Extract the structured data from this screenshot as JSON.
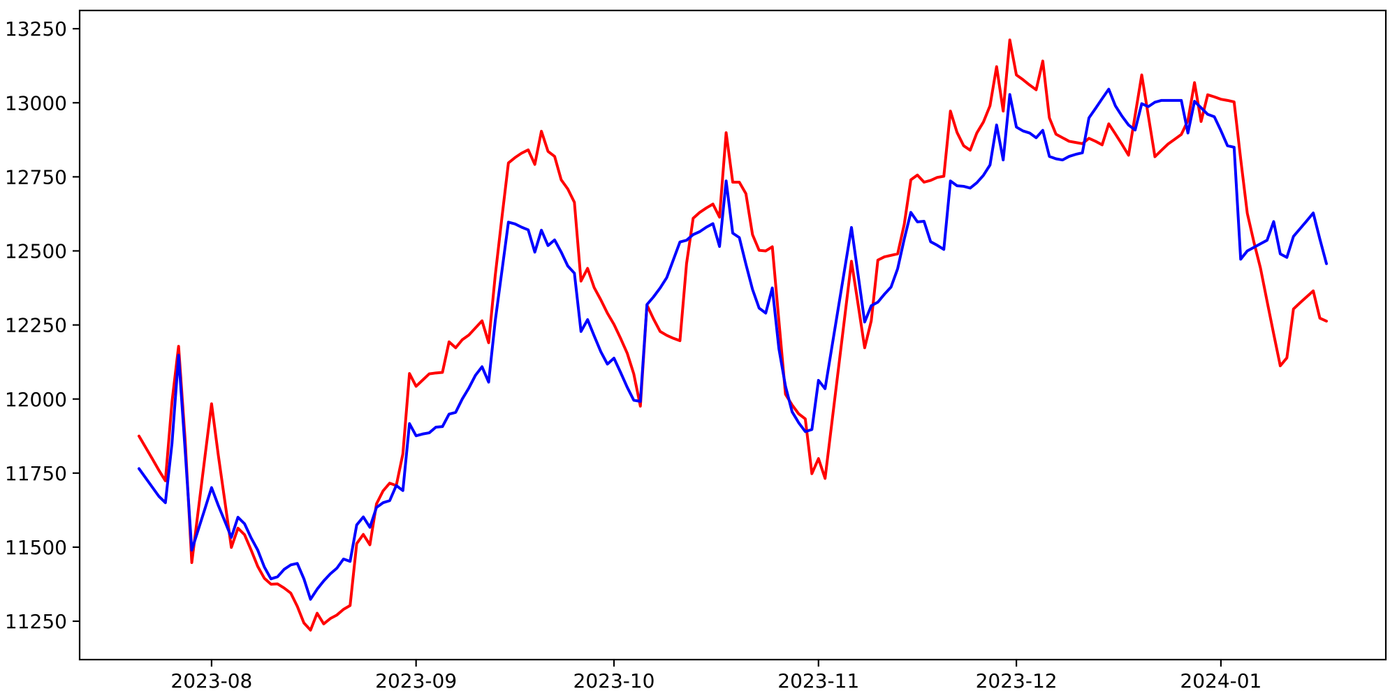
{
  "chart_data": {
    "type": "line",
    "title": "",
    "xlabel": "",
    "ylabel": "",
    "grid": false,
    "legend": null,
    "background_color": "#ffffff",
    "spine_color": "#000000",
    "tick_label_color": "#000000",
    "xlim": [
      "2023-07-12",
      "2024-01-26"
    ],
    "ylim": [
      11120.4,
      13311.6
    ],
    "y_ticks": [
      11250,
      11500,
      11750,
      12000,
      12250,
      12500,
      12750,
      13000,
      13250
    ],
    "y_tick_labels": [
      "11250",
      "11500",
      "11750",
      "12000",
      "12250",
      "12500",
      "12750",
      "13000",
      "13250"
    ],
    "x_ticks": [
      "2023-08-01",
      "2023-09-01",
      "2023-10-01",
      "2023-11-01",
      "2023-12-01",
      "2024-01-01"
    ],
    "x_tick_labels": [
      "2023-08",
      "2023-09",
      "2023-10",
      "2023-11",
      "2023-12",
      "2024-01"
    ],
    "x": [
      "2023-07-21",
      "2023-07-22",
      "2023-07-23",
      "2023-07-24",
      "2023-07-25",
      "2023-07-26",
      "2023-07-27",
      "2023-07-28",
      "2023-07-29",
      "2023-07-30",
      "2023-07-31",
      "2023-08-01",
      "2023-08-02",
      "2023-08-03",
      "2023-08-04",
      "2023-08-05",
      "2023-08-06",
      "2023-08-07",
      "2023-08-08",
      "2023-08-09",
      "2023-08-10",
      "2023-08-11",
      "2023-08-12",
      "2023-08-13",
      "2023-08-14",
      "2023-08-15",
      "2023-08-16",
      "2023-08-17",
      "2023-08-18",
      "2023-08-19",
      "2023-08-20",
      "2023-08-21",
      "2023-08-22",
      "2023-08-23",
      "2023-08-24",
      "2023-08-25",
      "2023-08-26",
      "2023-08-27",
      "2023-08-28",
      "2023-08-29",
      "2023-08-30",
      "2023-08-31",
      "2023-09-01",
      "2023-09-02",
      "2023-09-03",
      "2023-09-04",
      "2023-09-05",
      "2023-09-06",
      "2023-09-07",
      "2023-09-08",
      "2023-09-09",
      "2023-09-10",
      "2023-09-11",
      "2023-09-12",
      "2023-09-13",
      "2023-09-14",
      "2023-09-15",
      "2023-09-16",
      "2023-09-17",
      "2023-09-18",
      "2023-09-19",
      "2023-09-20",
      "2023-09-21",
      "2023-09-22",
      "2023-09-23",
      "2023-09-24",
      "2023-09-25",
      "2023-09-26",
      "2023-09-27",
      "2023-09-28",
      "2023-09-29",
      "2023-09-30",
      "2023-10-01",
      "2023-10-02",
      "2023-10-03",
      "2023-10-04",
      "2023-10-05",
      "2023-10-06",
      "2023-10-07",
      "2023-10-08",
      "2023-10-09",
      "2023-10-10",
      "2023-10-11",
      "2023-10-12",
      "2023-10-13",
      "2023-10-14",
      "2023-10-15",
      "2023-10-16",
      "2023-10-17",
      "2023-10-18",
      "2023-10-19",
      "2023-10-20",
      "2023-10-21",
      "2023-10-22",
      "2023-10-23",
      "2023-10-24",
      "2023-10-25",
      "2023-10-26",
      "2023-10-27",
      "2023-10-28",
      "2023-10-29",
      "2023-10-30",
      "2023-10-31",
      "2023-11-01",
      "2023-11-02",
      "2023-11-03",
      "2023-11-04",
      "2023-11-05",
      "2023-11-06",
      "2023-11-07",
      "2023-11-08",
      "2023-11-09",
      "2023-11-10",
      "2023-11-11",
      "2023-11-12",
      "2023-11-13",
      "2023-11-14",
      "2023-11-15",
      "2023-11-16",
      "2023-11-17",
      "2023-11-18",
      "2023-11-19",
      "2023-11-20",
      "2023-11-21",
      "2023-11-22",
      "2023-11-23",
      "2023-11-24",
      "2023-11-25",
      "2023-11-26",
      "2023-11-27",
      "2023-11-28",
      "2023-11-29",
      "2023-11-30",
      "2023-12-01",
      "2023-12-02",
      "2023-12-03",
      "2023-12-04",
      "2023-12-05",
      "2023-12-06",
      "2023-12-07",
      "2023-12-08",
      "2023-12-09",
      "2023-12-10",
      "2023-12-11",
      "2023-12-12",
      "2023-12-13",
      "2023-12-14",
      "2023-12-15",
      "2023-12-16",
      "2023-12-17",
      "2023-12-18",
      "2023-12-19",
      "2023-12-20",
      "2023-12-21",
      "2023-12-22",
      "2023-12-23",
      "2023-12-24",
      "2023-12-25",
      "2023-12-26",
      "2023-12-27",
      "2023-12-28",
      "2023-12-29",
      "2023-12-30",
      "2023-12-31",
      "2024-01-01",
      "2024-01-02",
      "2024-01-03",
      "2024-01-04",
      "2024-01-05",
      "2024-01-06",
      "2024-01-07",
      "2024-01-08",
      "2024-01-09",
      "2024-01-10",
      "2024-01-11",
      "2024-01-12",
      "2024-01-13",
      "2024-01-14",
      "2024-01-15",
      "2024-01-16",
      "2024-01-17"
    ],
    "series": [
      {
        "name": "red-series",
        "color": "#ff0000",
        "line_width": 4,
        "values": [
          11875,
          11837,
          11799,
          11760,
          11724,
          11990,
          12178,
          11860,
          11448,
          11627,
          11806,
          11984,
          11814,
          11657,
          11499,
          11564,
          11542,
          11490,
          11435,
          11395,
          11375,
          11376,
          11362,
          11345,
          11300,
          11244,
          11220,
          11277,
          11241,
          11259,
          11271,
          11290,
          11303,
          11512,
          11543,
          11508,
          11646,
          11690,
          11716,
          11708,
          11815,
          12086,
          12043,
          12064,
          12085,
          12088,
          12090,
          12193,
          12173,
          12200,
          12216,
          12240,
          12264,
          12190,
          12417,
          12610,
          12797,
          12815,
          12830,
          12841,
          12792,
          12904,
          12836,
          12819,
          12740,
          12709,
          12664,
          12398,
          12441,
          12376,
          12335,
          12290,
          12252,
          12205,
          12155,
          12085,
          11976,
          12317,
          12270,
          12228,
          12215,
          12205,
          12197,
          12457,
          12610,
          12630,
          12645,
          12658,
          12614,
          12899,
          12732,
          12732,
          12693,
          12555,
          12502,
          12500,
          12514,
          12264,
          12016,
          11980,
          11950,
          11933,
          11748,
          11799,
          11732,
          11915,
          12098,
          12281,
          12465,
          12320,
          12173,
          12264,
          12469,
          12480,
          12485,
          12490,
          12590,
          12740,
          12756,
          12732,
          12738,
          12748,
          12752,
          12972,
          12900,
          12855,
          12840,
          12898,
          12935,
          12990,
          13122,
          12972,
          13212,
          13094,
          13078,
          13060,
          13044,
          13141,
          12949,
          12894,
          12882,
          12870,
          12866,
          12862,
          12880,
          12870,
          12858,
          12929,
          12895,
          12860,
          12823,
          12958,
          13094,
          12956,
          12818,
          12840,
          12861,
          12877,
          12893,
          12940,
          13068,
          12937,
          13027,
          13020,
          13012,
          13008,
          13003,
          12810,
          12627,
          12530,
          12442,
          12330,
          12220,
          12112,
          12139,
          12304,
          12325,
          12345,
          12365,
          12273,
          12263
        ]
      },
      {
        "name": "blue-series",
        "color": "#0000ff",
        "line_width": 4,
        "values": [
          11765,
          11734,
          11703,
          11672,
          11650,
          11850,
          12148,
          11825,
          11490,
          11560,
          11630,
          11701,
          11642,
          11588,
          11533,
          11601,
          11579,
          11531,
          11490,
          11433,
          11393,
          11400,
          11425,
          11440,
          11445,
          11393,
          11324,
          11358,
          11386,
          11410,
          11429,
          11460,
          11452,
          11575,
          11602,
          11567,
          11634,
          11650,
          11657,
          11708,
          11691,
          11917,
          11876,
          11882,
          11886,
          11905,
          11907,
          11949,
          11955,
          12000,
          12037,
          12080,
          12109,
          12057,
          12264,
          12430,
          12597,
          12591,
          12580,
          12571,
          12496,
          12570,
          12518,
          12537,
          12496,
          12449,
          12425,
          12228,
          12268,
          12213,
          12160,
          12118,
          12138,
          12090,
          12040,
          11996,
          11992,
          12319,
          12345,
          12375,
          12410,
          12470,
          12530,
          12536,
          12555,
          12565,
          12580,
          12592,
          12515,
          12736,
          12560,
          12545,
          12455,
          12370,
          12307,
          12290,
          12375,
          12170,
          12043,
          11957,
          11920,
          11890,
          11897,
          12063,
          12035,
          12171,
          12307,
          12443,
          12579,
          12420,
          12260,
          12315,
          12327,
          12354,
          12378,
          12440,
          12540,
          12630,
          12598,
          12600,
          12531,
          12519,
          12505,
          12736,
          12720,
          12718,
          12712,
          12730,
          12755,
          12790,
          12925,
          12807,
          13028,
          12918,
          12905,
          12898,
          12882,
          12907,
          12819,
          12811,
          12807,
          12819,
          12826,
          12831,
          12949,
          12981,
          13014,
          13046,
          12990,
          12955,
          12925,
          12908,
          12997,
          12987,
          13002,
          13008,
          13008,
          13008,
          13008,
          12898,
          13005,
          12983,
          12961,
          12953,
          12906,
          12855,
          12850,
          12472,
          12500,
          12512,
          12524,
          12536,
          12599,
          12490,
          12478,
          12549,
          12575,
          12601,
          12628,
          12540,
          12457
        ]
      }
    ]
  }
}
